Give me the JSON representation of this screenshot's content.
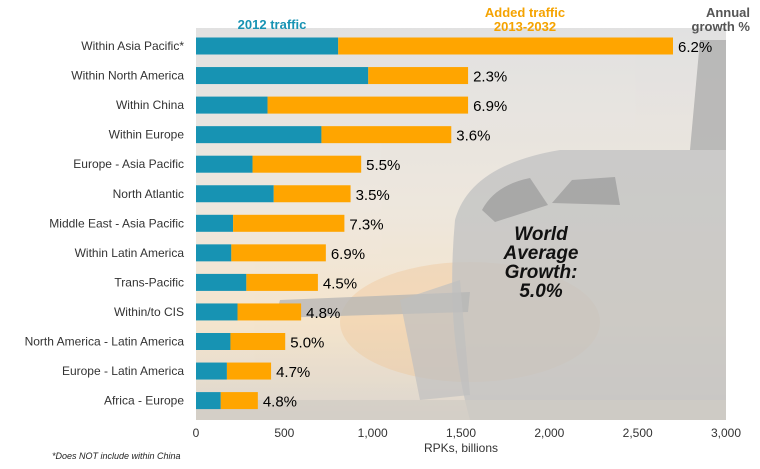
{
  "chart_data": {
    "type": "bar",
    "orientation": "horizontal",
    "stacked": true,
    "categories": [
      "Within Asia Pacific*",
      "Within North America",
      "Within China",
      "Within Europe",
      "Europe - Asia Pacific",
      "North Atlantic",
      "Middle East - Asia Pacific",
      "Within Latin America",
      "Trans-Pacific",
      "Within/to CIS",
      "North America - Latin America",
      "Europe - Latin America",
      "Africa - Europe"
    ],
    "series": [
      {
        "name": "2012 traffic",
        "color": "#1793b3",
        "values": [
          805,
          975,
          405,
          710,
          320,
          440,
          210,
          200,
          285,
          235,
          195,
          175,
          140
        ]
      },
      {
        "name": "Added traffic 2013-2032",
        "color": "#ffa500",
        "values": [
          1895,
          565,
          1135,
          735,
          615,
          435,
          630,
          535,
          405,
          360,
          310,
          250,
          210
        ]
      }
    ],
    "growth_header": "Annual growth %",
    "growth": [
      "6.2%",
      "2.3%",
      "6.9%",
      "3.6%",
      "5.5%",
      "3.5%",
      "7.3%",
      "6.9%",
      "4.5%",
      "4.8%",
      "5.0%",
      "4.7%",
      "4.8%"
    ],
    "header_2012": "2012 traffic",
    "header_added": [
      "Added traffic",
      "2013-2032"
    ],
    "header_growth": [
      "Annual",
      "growth %"
    ],
    "annotation": [
      "World",
      "Average",
      "Growth:",
      "5.0%"
    ],
    "xlabel": "RPKs, billions",
    "xlim": [
      0,
      3000
    ],
    "xticks": [
      0,
      500,
      1000,
      1500,
      2000,
      2500,
      3000
    ],
    "xtick_labels": [
      "0",
      "500",
      "1,000",
      "1,500",
      "2,000",
      "2,500",
      "3,000"
    ],
    "footnote": "*Does NOT include within China",
    "grid": false,
    "background_image": "airplane-at-sunset-photo"
  }
}
